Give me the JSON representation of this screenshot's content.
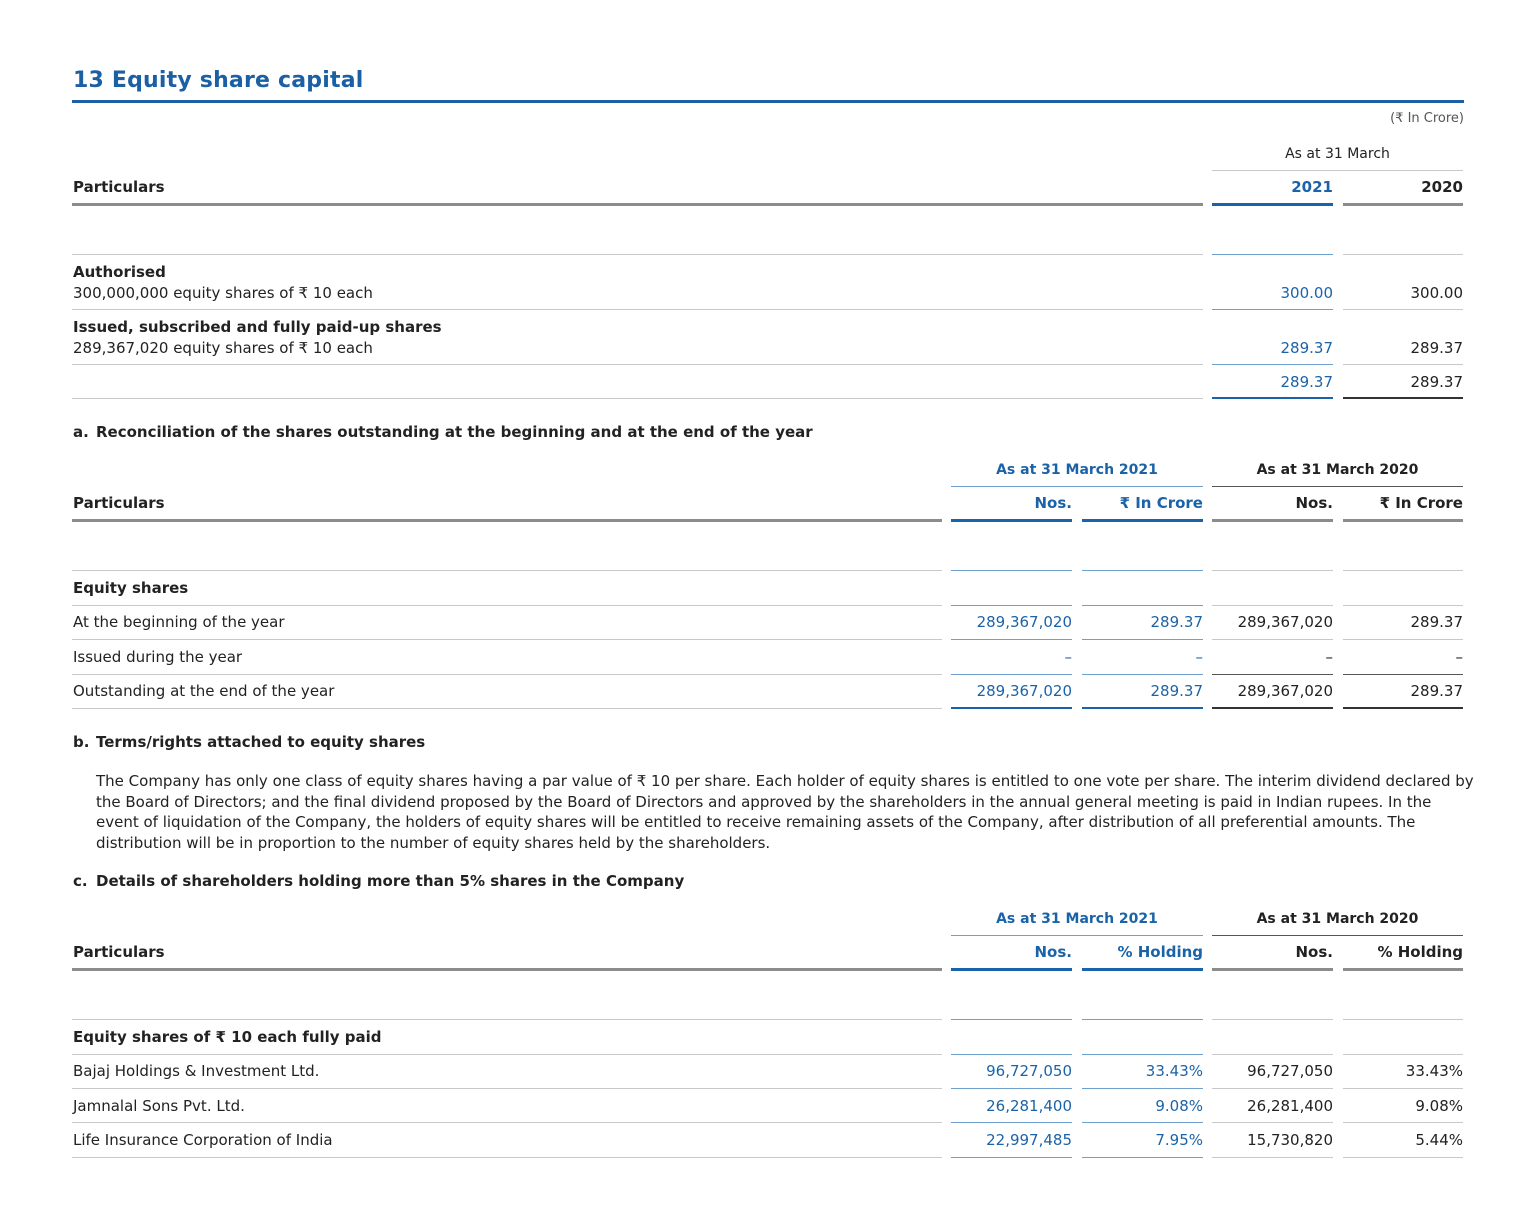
{
  "title": "13 Equity share capital",
  "unit_note": "(₹ In Crore)",
  "table1": {
    "group_header": "As at 31 March",
    "col_particulars": "Particulars",
    "year1": "2021",
    "year2": "2020",
    "rows": [
      {
        "heading": "Authorised",
        "text": "300,000,000 equity shares of ₹ 10 each",
        "v1": "300.00",
        "v2": "300.00"
      },
      {
        "heading": "Issued, subscribed and fully paid-up shares",
        "text": "289,367,020 equity shares of ₹ 10 each",
        "v1": "289.37",
        "v2": "289.37"
      },
      {
        "heading": "",
        "text": "",
        "v1": "289.37",
        "v2": "289.37"
      }
    ]
  },
  "section_a": {
    "label": "a.",
    "heading": "Reconciliation of the shares outstanding at the beginning and at the end of the year",
    "group1": "As at 31 March 2021",
    "group2": "As at 31 March 2020",
    "col_particulars": "Particulars",
    "col1": "Nos.",
    "col2": "₹ In Crore",
    "col3": "Nos.",
    "col4": "₹ In Crore",
    "subheading": "Equity shares",
    "rows": [
      {
        "label": "At the beginning of the year",
        "c1": "289,367,020",
        "c2": "289.37",
        "c3": "289,367,020",
        "c4": "289.37"
      },
      {
        "label": "Issued during the year",
        "c1": "–",
        "c2": "–",
        "c3": "–",
        "c4": "–"
      },
      {
        "label": "Outstanding at the end of the year",
        "c1": "289,367,020",
        "c2": "289.37",
        "c3": "289,367,020",
        "c4": "289.37"
      }
    ]
  },
  "section_b": {
    "label": "b.",
    "heading": "Terms/rights attached to equity shares",
    "paragraph": "The Company has only one class of equity shares having a par value of ₹ 10 per share. Each holder of equity shares is entitled to one vote per share. The interim dividend declared by the Board of Directors; and the final dividend proposed by the Board of Directors and approved by the shareholders in the annual general meeting is paid in Indian rupees. In the event of liquidation of the Company, the holders of equity shares will be entitled to receive remaining assets of the Company, after distribution of all preferential amounts. The distribution will be in proportion to the number of equity shares held by the shareholders."
  },
  "section_c": {
    "label": "c.",
    "heading": "Details of shareholders holding more than 5% shares in the Company",
    "group1": "As at 31 March 2021",
    "group2": "As at 31 March 2020",
    "col_particulars": "Particulars",
    "col1": "Nos.",
    "col2": "% Holding",
    "col3": "Nos.",
    "col4": "% Holding",
    "subheading": "Equity shares of ₹ 10 each fully paid",
    "rows": [
      {
        "label": "Bajaj Holdings & Investment Ltd.",
        "c1": "96,727,050",
        "c2": "33.43%",
        "c3": "96,727,050",
        "c4": "33.43%"
      },
      {
        "label": "Jamnalal Sons Pvt. Ltd.",
        "c1": "26,281,400",
        "c2": "9.08%",
        "c3": "26,281,400",
        "c4": "9.08%"
      },
      {
        "label": "Life Insurance Corporation of India",
        "c1": "22,997,485",
        "c2": "7.95%",
        "c3": "15,730,820",
        "c4": "5.44%"
      }
    ]
  }
}
